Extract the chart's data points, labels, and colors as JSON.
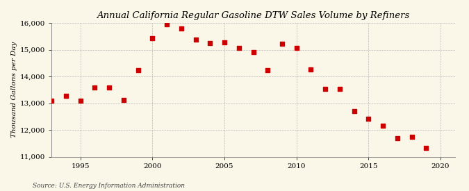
{
  "title": "Annual California Regular Gasoline DTW Sales Volume by Refiners",
  "ylabel": "Thousand Gallons per Day",
  "source": "Source: U.S. Energy Information Administration",
  "years": [
    1993,
    1994,
    1995,
    1996,
    1997,
    1998,
    1999,
    2000,
    2001,
    2002,
    2003,
    2004,
    2005,
    2006,
    2007,
    2008,
    2009,
    2010,
    2011,
    2012,
    2013,
    2014,
    2015,
    2016,
    2017,
    2018,
    2019
  ],
  "values": [
    13080,
    13270,
    13100,
    13580,
    13590,
    13110,
    14230,
    15420,
    15940,
    15790,
    15370,
    15250,
    15280,
    15060,
    14900,
    14240,
    15210,
    15060,
    14260,
    13530,
    13530,
    12700,
    12420,
    12160,
    11700,
    11750,
    11320
  ],
  "marker_color": "#cc0000",
  "marker_size": 18,
  "background_color": "#faf6e8",
  "grid_color": "#aaaaaa",
  "ylim": [
    11000,
    16000
  ],
  "yticks": [
    11000,
    12000,
    13000,
    14000,
    15000,
    16000
  ],
  "xlim": [
    1993.0,
    2021.0
  ],
  "xticks": [
    1995,
    2000,
    2005,
    2010,
    2015,
    2020
  ],
  "title_fontsize": 9.5,
  "ylabel_fontsize": 7.5,
  "tick_fontsize": 7.5,
  "source_fontsize": 6.5
}
